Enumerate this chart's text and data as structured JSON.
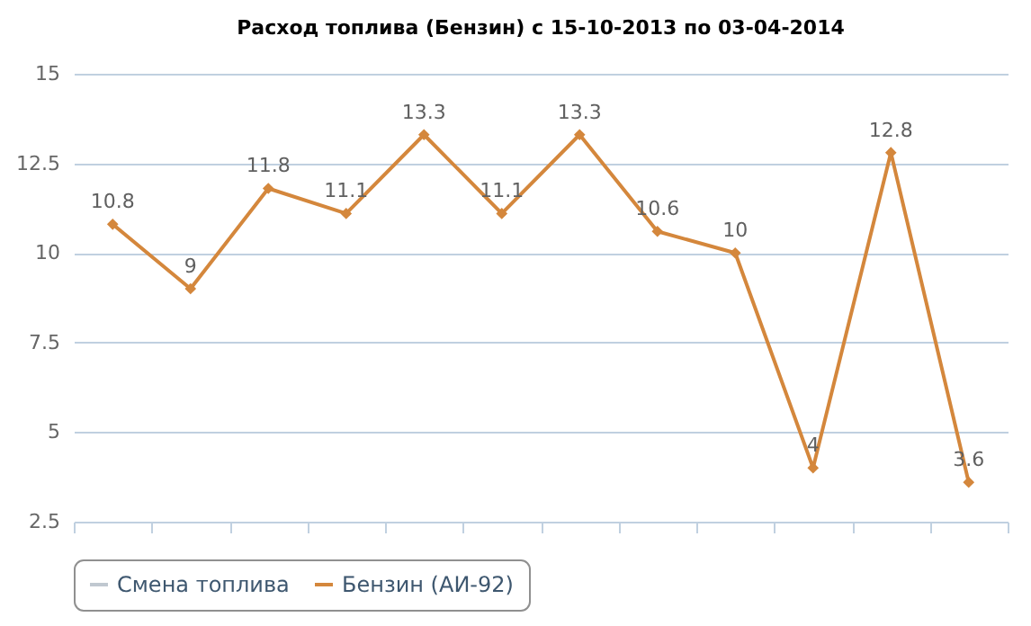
{
  "chart_data": {
    "type": "line",
    "title": "Расход топлива (Бензин) с 15-10-2013 по 03-04-2014",
    "categories": [
      null,
      null,
      null,
      null,
      null,
      null,
      null,
      null,
      null,
      null,
      null,
      null
    ],
    "series": [
      {
        "name": "Смена топлива",
        "color": "#c0c8d0",
        "values": [
          null,
          null,
          null,
          null,
          null,
          null,
          null,
          null,
          null,
          null,
          null,
          null
        ]
      },
      {
        "name": "Бензин (АИ-92)",
        "color": "#d4873c",
        "values": [
          10.8,
          9,
          11.8,
          11.1,
          13.3,
          11.1,
          13.3,
          10.6,
          10,
          4,
          12.8,
          3.6
        ]
      }
    ],
    "ylim": [
      2.5,
      15
    ],
    "yticks": [
      2.5,
      5,
      7.5,
      10,
      12.5,
      15
    ],
    "grid": "y",
    "legend": "bottom",
    "tick_labels": "y",
    "marker": "diamond",
    "line_style": "solid",
    "data_labels": true
  }
}
